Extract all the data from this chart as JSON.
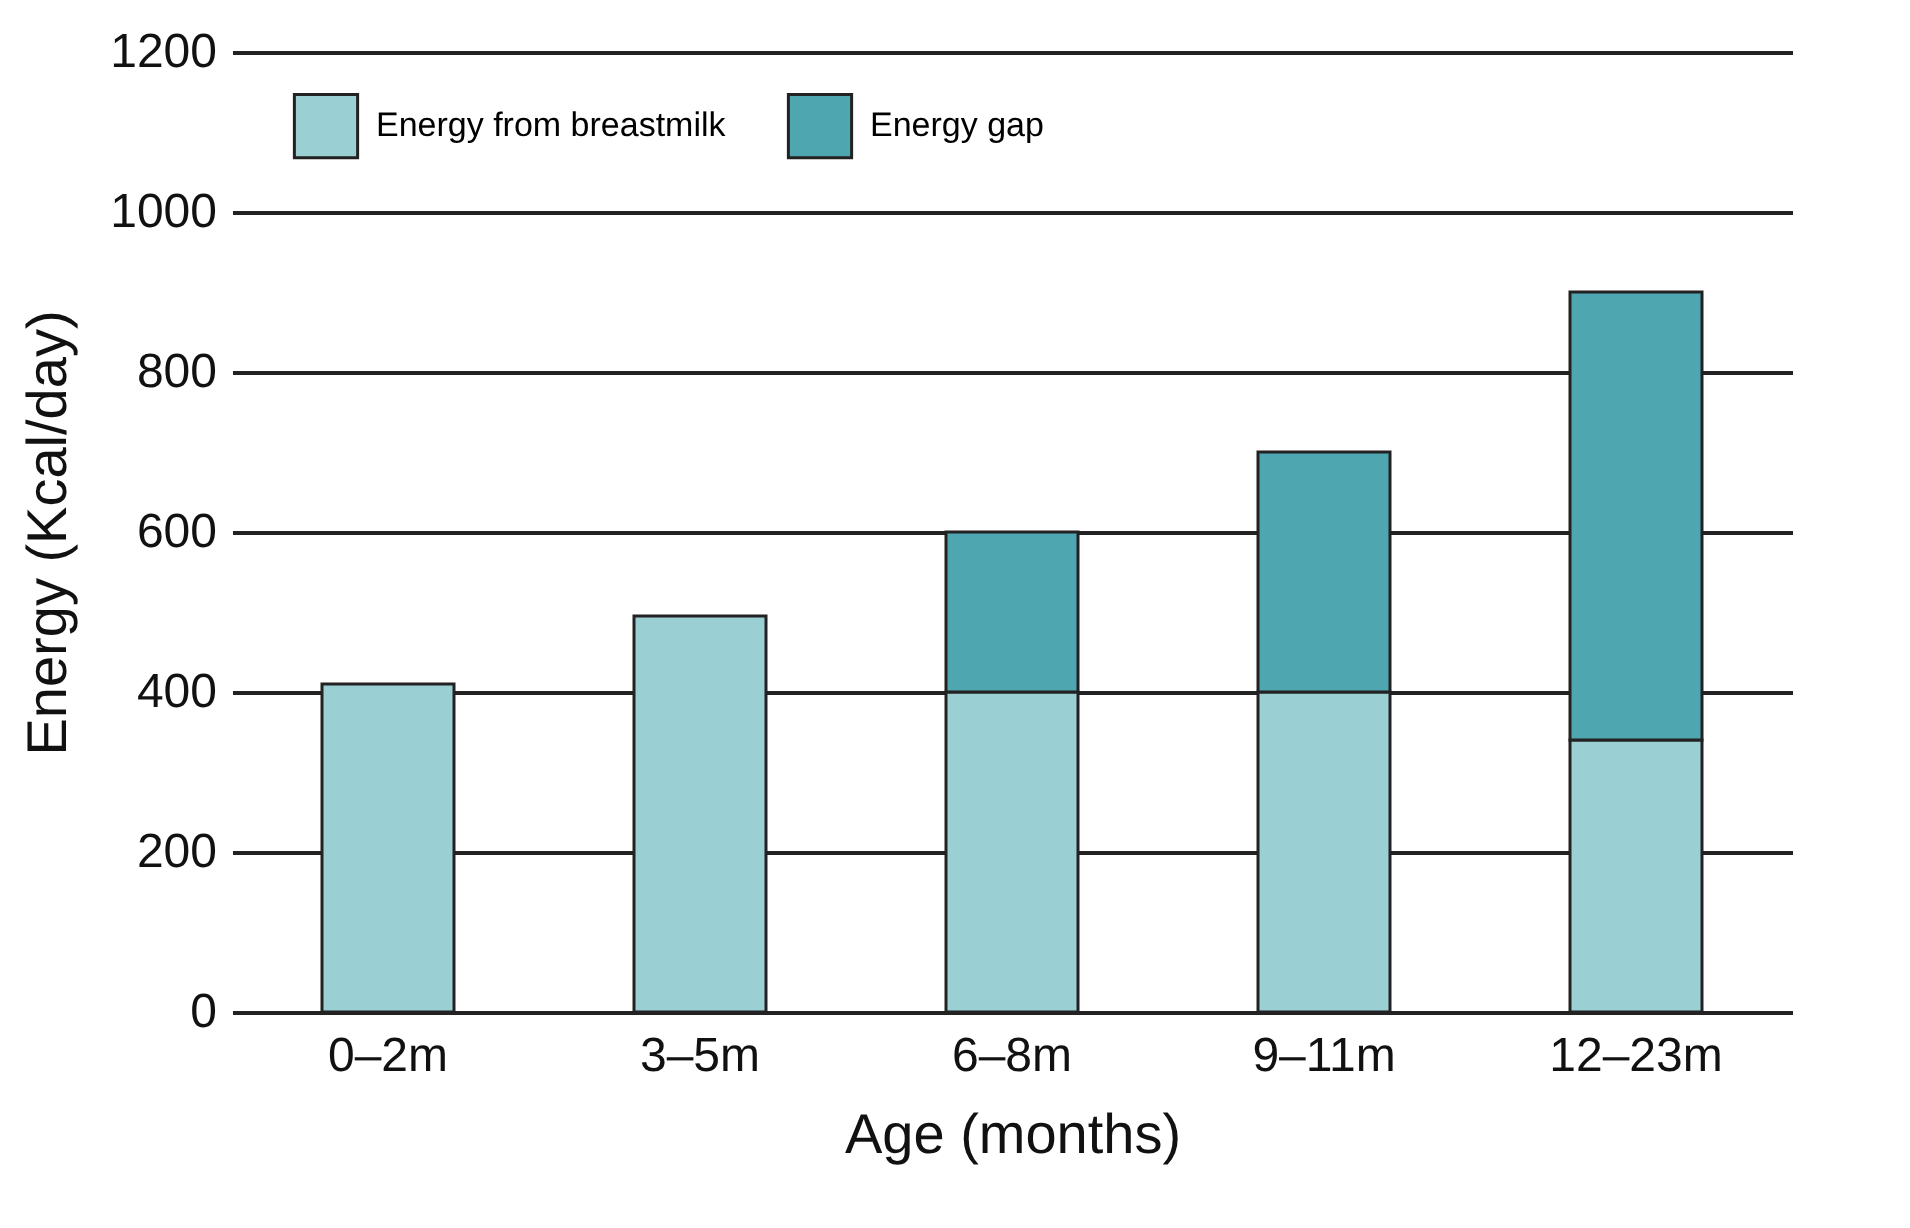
{
  "chart_data": {
    "type": "bar",
    "stacked": true,
    "xlabel": "Age (months)",
    "ylabel": "Energy (Kcal/day)",
    "categories": [
      "0–2m",
      "3–5m",
      "6–8m",
      "9–11m",
      "12–23m"
    ],
    "series": [
      {
        "name": "Energy from breastmilk",
        "color": "#9acfd4",
        "values": [
          410,
          495,
          400,
          400,
          340
        ]
      },
      {
        "name": "Energy gap",
        "color": "#4ea7b0",
        "values": [
          null,
          null,
          200,
          300,
          560
        ]
      }
    ],
    "ylim": [
      0,
      1200
    ],
    "yticks": [
      0,
      200,
      400,
      600,
      800,
      1000,
      1200
    ],
    "grid": "y",
    "legend": "top left"
  }
}
